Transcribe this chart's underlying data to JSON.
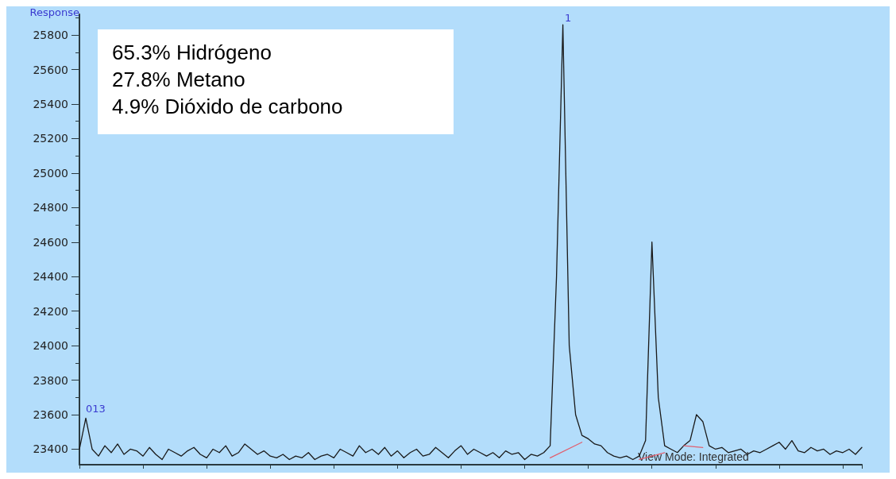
{
  "chart_data": {
    "type": "line",
    "ylabel": "Response",
    "categories": [
      null,
      null,
      null,
      null,
      null,
      null,
      null,
      null,
      null,
      null,
      null,
      null,
      null,
      null,
      null,
      null,
      null,
      null,
      null,
      null,
      null,
      null,
      null,
      null,
      null,
      null,
      null,
      null,
      null,
      null,
      null,
      null,
      null,
      null,
      null,
      null,
      null,
      null,
      null,
      null,
      null,
      null,
      null,
      null,
      null,
      null,
      null,
      null,
      null,
      null,
      null,
      null,
      null,
      null,
      null,
      null,
      null,
      null,
      null,
      null,
      null,
      null,
      null,
      null,
      null,
      null,
      null,
      null,
      null,
      null,
      null,
      null,
      null,
      null,
      null,
      null,
      null,
      null,
      null,
      null,
      null,
      null,
      null,
      null,
      null,
      null,
      null,
      null,
      null,
      null,
      null,
      null,
      null,
      null,
      null,
      null,
      null,
      null,
      null,
      null,
      null,
      null,
      null,
      null,
      null,
      null,
      null,
      null,
      null,
      null,
      null,
      null,
      null,
      null,
      null,
      null,
      null,
      null,
      null,
      null,
      null,
      null,
      null,
      null
    ],
    "series": [
      {
        "color": "#1a1a1a",
        "values": [
          23400,
          23580,
          23400,
          23360,
          23420,
          23380,
          23430,
          23370,
          23400,
          23390,
          23360,
          23410,
          23370,
          23340,
          23400,
          23380,
          23360,
          23390,
          23410,
          23370,
          23350,
          23400,
          23380,
          23420,
          23360,
          23380,
          23430,
          23400,
          23370,
          23390,
          23360,
          23350,
          23370,
          23340,
          23360,
          23350,
          23380,
          23340,
          23360,
          23370,
          23350,
          23400,
          23380,
          23360,
          23420,
          23380,
          23400,
          23370,
          23410,
          23360,
          23390,
          23350,
          23380,
          23400,
          23360,
          23370,
          23410,
          23380,
          23350,
          23390,
          23420,
          23370,
          23400,
          23380,
          23360,
          23380,
          23350,
          23390,
          23370,
          23380,
          23340,
          23370,
          23360,
          23380,
          23420,
          24400,
          25860,
          24000,
          23600,
          23480,
          23460,
          23430,
          23420,
          23380,
          23360,
          23350,
          23360,
          23340,
          23360,
          23450,
          24600,
          23700,
          23420,
          23400,
          23380,
          23420,
          23450,
          23600,
          23560,
          23420,
          23400,
          23410,
          23380,
          23390,
          23400,
          23370,
          23390,
          23380,
          23400,
          23420,
          23440,
          23400,
          23450,
          23390,
          23380,
          23410,
          23390,
          23400,
          23370,
          23390,
          23380,
          23400,
          23370,
          23410
        ]
      },
      {
        "color": "#e06070",
        "values": [
          null,
          null,
          null,
          null,
          null,
          null,
          null,
          null,
          null,
          null,
          null,
          null,
          null,
          null,
          null,
          null,
          null,
          null,
          null,
          null,
          null,
          null,
          null,
          null,
          null,
          null,
          null,
          null,
          null,
          null,
          null,
          null,
          null,
          null,
          null,
          null,
          null,
          null,
          null,
          null,
          null,
          null,
          null,
          null,
          null,
          null,
          null,
          null,
          null,
          null,
          null,
          null,
          null,
          null,
          null,
          null,
          null,
          null,
          null,
          null,
          null,
          null,
          null,
          null,
          null,
          null,
          null,
          null,
          null,
          null,
          null,
          null,
          null,
          null,
          23350,
          null,
          null,
          null,
          null,
          23440,
          null,
          null,
          null,
          null,
          null,
          null,
          null,
          null,
          null,
          null,
          null,
          null,
          null,
          null,
          null,
          null,
          null,
          null,
          null,
          null,
          null,
          null,
          null,
          null,
          null,
          null,
          null,
          null,
          null,
          null,
          null,
          null,
          null,
          null,
          null,
          null,
          null,
          null,
          null,
          null,
          null,
          null,
          null,
          null
        ]
      },
      {
        "color": "#e06070",
        "values": [
          null,
          null,
          null,
          null,
          null,
          null,
          null,
          null,
          null,
          null,
          null,
          null,
          null,
          null,
          null,
          null,
          null,
          null,
          null,
          null,
          null,
          null,
          null,
          null,
          null,
          null,
          null,
          null,
          null,
          null,
          null,
          null,
          null,
          null,
          null,
          null,
          null,
          null,
          null,
          null,
          null,
          null,
          null,
          null,
          null,
          null,
          null,
          null,
          null,
          null,
          null,
          null,
          null,
          null,
          null,
          null,
          null,
          null,
          null,
          null,
          null,
          null,
          null,
          null,
          null,
          null,
          null,
          null,
          null,
          null,
          null,
          null,
          null,
          null,
          null,
          null,
          null,
          null,
          null,
          null,
          null,
          null,
          null,
          null,
          null,
          null,
          null,
          null,
          23340,
          null,
          null,
          null,
          23380,
          null,
          null,
          null,
          null,
          null,
          null,
          null,
          null,
          null,
          null,
          null,
          null,
          null,
          null,
          null,
          null,
          null,
          null,
          null,
          null,
          null,
          null,
          null,
          null,
          null,
          null,
          null,
          null,
          null,
          null,
          null
        ]
      },
      {
        "color": "#e06070",
        "values": [
          null,
          null,
          null,
          null,
          null,
          null,
          null,
          null,
          null,
          null,
          null,
          null,
          null,
          null,
          null,
          null,
          null,
          null,
          null,
          null,
          null,
          null,
          null,
          null,
          null,
          null,
          null,
          null,
          null,
          null,
          null,
          null,
          null,
          null,
          null,
          null,
          null,
          null,
          null,
          null,
          null,
          null,
          null,
          null,
          null,
          null,
          null,
          null,
          null,
          null,
          null,
          null,
          null,
          null,
          null,
          null,
          null,
          null,
          null,
          null,
          null,
          null,
          null,
          null,
          null,
          null,
          null,
          null,
          null,
          null,
          null,
          null,
          null,
          null,
          null,
          null,
          null,
          null,
          null,
          null,
          null,
          null,
          null,
          null,
          null,
          null,
          null,
          null,
          null,
          null,
          null,
          null,
          null,
          null,
          null,
          23420,
          null,
          null,
          23410,
          null,
          null,
          null,
          null,
          null,
          null,
          null,
          null,
          null,
          null,
          null,
          null,
          null,
          null,
          null,
          null,
          null,
          null,
          null,
          null,
          null,
          null,
          null,
          null,
          null
        ]
      }
    ],
    "ylim": [
      23310,
      25920
    ],
    "yticks": [
      23400,
      23600,
      23800,
      24000,
      24200,
      24400,
      24600,
      24800,
      25000,
      25200,
      25400,
      25600,
      25800
    ],
    "tick_labels": "y",
    "grid": false,
    "line_style": "solid",
    "annotations": [
      "65.3% Hidrógeno",
      "27.8% Metano",
      "4.9% Dióxido de carbono",
      "View Mode: Integrated",
      "013",
      "1"
    ]
  }
}
